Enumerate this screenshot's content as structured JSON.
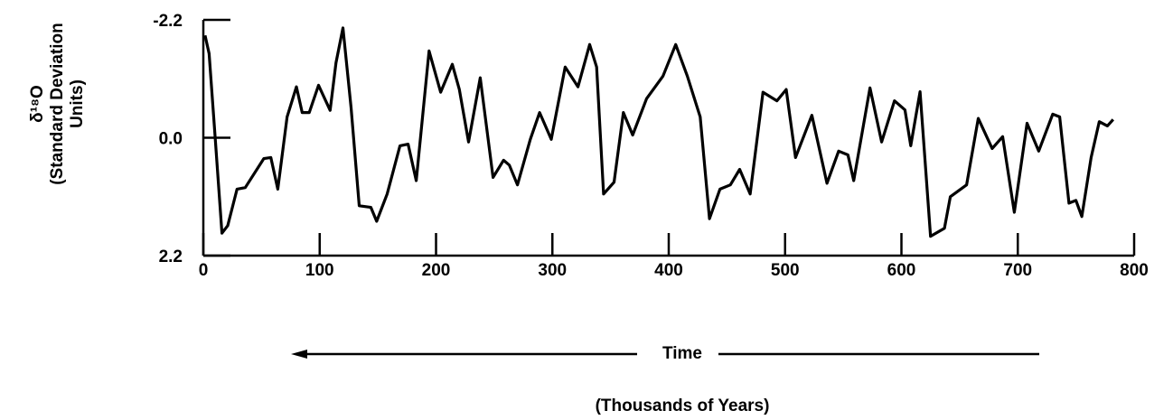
{
  "chart_data": {
    "type": "line",
    "ylabel": [
      "δ¹⁸O",
      "(Standard Deviation",
      "Units)"
    ],
    "xlabel": "Time",
    "xlabel_units": "(Thousands of Years)",
    "color": "#000000",
    "xlim": [
      0,
      800
    ],
    "xticks": [
      0,
      100,
      200,
      300,
      400,
      500,
      600,
      700,
      800
    ],
    "ylim": [
      2.2,
      -2.2
    ],
    "yticks": [
      -2.2,
      {
        "value": 0,
        "label": "0.0"
      },
      2.2
    ],
    "x": [
      1.5,
      5,
      10,
      16,
      21,
      29,
      36,
      52,
      58,
      64,
      72,
      80,
      85,
      91,
      99,
      109,
      114,
      120,
      127,
      134,
      144,
      149,
      158,
      169,
      176,
      183,
      194,
      204,
      214,
      220,
      228,
      238,
      249,
      258,
      263,
      270,
      281,
      289,
      299,
      311,
      322,
      332,
      338,
      344,
      353,
      361,
      369,
      381,
      395,
      406,
      416,
      427,
      435,
      444,
      453,
      461,
      470,
      481,
      493,
      501,
      509,
      523,
      536,
      546,
      554,
      559,
      573,
      583,
      594,
      603,
      608,
      616,
      625,
      637,
      642,
      656,
      666,
      678,
      687,
      697,
      708,
      718,
      730,
      736,
      744,
      750,
      755,
      763,
      770,
      777,
      782
    ],
    "values": [
      -1.91,
      -1.57,
      -0.05,
      1.78,
      1.64,
      0.96,
      0.93,
      0.39,
      0.37,
      0.96,
      -0.39,
      -0.95,
      -0.47,
      -0.47,
      -0.98,
      -0.51,
      -1.4,
      -2.05,
      -0.56,
      1.27,
      1.3,
      1.56,
      1.05,
      0.15,
      0.12,
      0.8,
      -1.62,
      -0.85,
      -1.37,
      -0.9,
      0.08,
      -1.12,
      0.74,
      0.42,
      0.51,
      0.88,
      0.03,
      -0.47,
      0.03,
      -1.32,
      -0.95,
      -1.74,
      -1.32,
      1.05,
      0.83,
      -0.47,
      -0.05,
      -0.73,
      -1.15,
      -1.74,
      -1.15,
      -0.39,
      1.51,
      0.96,
      0.88,
      0.59,
      1.05,
      -0.85,
      -0.69,
      -0.9,
      0.37,
      -0.42,
      0.85,
      0.25,
      0.32,
      0.8,
      -0.93,
      0.08,
      -0.69,
      -0.52,
      0.15,
      -0.86,
      1.84,
      1.69,
      1.1,
      0.88,
      -0.36,
      0.2,
      -0.02,
      1.39,
      -0.27,
      0.25,
      -0.44,
      -0.39,
      1.22,
      1.17,
      1.47,
      0.37,
      -0.3,
      -0.22,
      -0.34
    ]
  }
}
